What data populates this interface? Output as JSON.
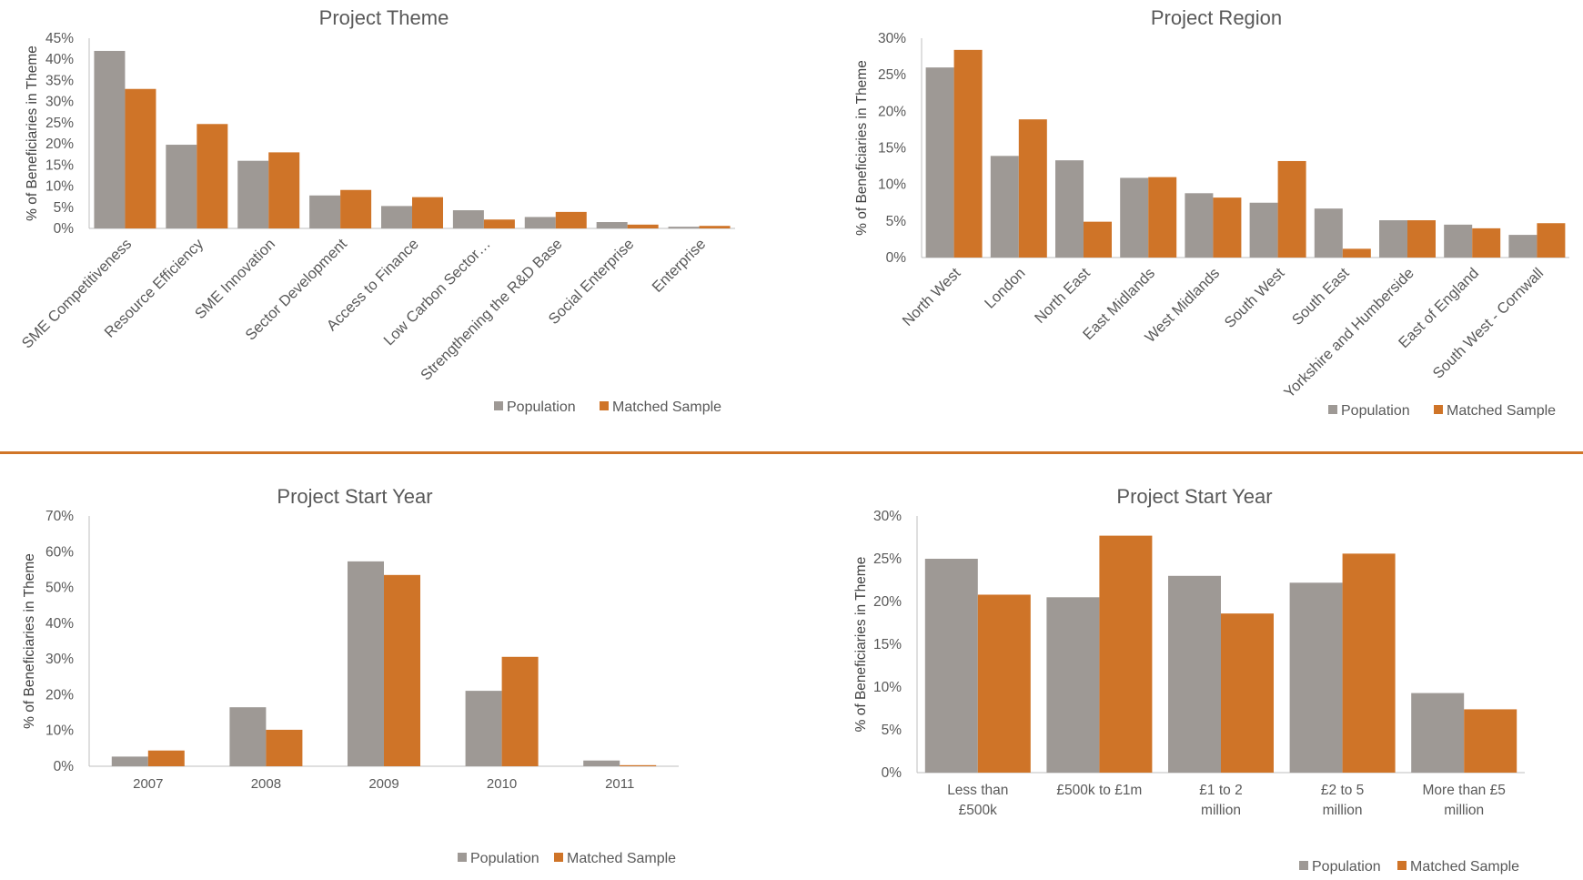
{
  "colors": {
    "population": "#9e9995",
    "matched": "#cf7428",
    "divider": "#d07527",
    "axis": "#bfbfbf",
    "text": "#595959"
  },
  "chart_data": [
    {
      "type": "bar",
      "title": "Project Theme",
      "ylabel": "% of Beneficiaries in Theme",
      "ylim": [
        0,
        45
      ],
      "yticks": [
        "0%",
        "5%",
        "10%",
        "15%",
        "20%",
        "25%",
        "30%",
        "35%",
        "40%",
        "45%"
      ],
      "categories": [
        "SME Competitiveness",
        "Resource Efficiency",
        "SME Innovation",
        "Sector Development",
        "Access to Finance",
        "Low Carbon Sector…",
        "Strengthening the R&D Base",
        "Social Enterprise",
        "Enterprise"
      ],
      "series": [
        {
          "name": "Population",
          "values": [
            42,
            19.8,
            16,
            7.8,
            5.3,
            4.3,
            2.7,
            1.5,
            0.4
          ]
        },
        {
          "name": "Matched Sample",
          "values": [
            33,
            24.7,
            18,
            9.1,
            7.4,
            2.1,
            3.9,
            0.9,
            0.6
          ]
        }
      ],
      "legend": "bottom-right",
      "grid": false
    },
    {
      "type": "bar",
      "title": "Project Region",
      "ylabel": "% of Beneficiaries in Theme",
      "ylim": [
        0,
        30
      ],
      "yticks": [
        "0%",
        "5%",
        "10%",
        "15%",
        "20%",
        "25%",
        "30%"
      ],
      "categories": [
        "North West",
        "London",
        "North East",
        "East Midlands",
        "West Midlands",
        "South West",
        "South East",
        "Yorkshire and Humberside",
        "East of England",
        "South West - Cornwall"
      ],
      "series": [
        {
          "name": "Population",
          "values": [
            26,
            13.9,
            13.3,
            10.9,
            8.8,
            7.5,
            6.7,
            5.1,
            4.5,
            3.1
          ]
        },
        {
          "name": "Matched Sample",
          "values": [
            28.4,
            18.9,
            4.9,
            11,
            8.2,
            13.2,
            1.2,
            5.1,
            4,
            4.7
          ]
        }
      ],
      "legend": "bottom-right",
      "grid": false
    },
    {
      "type": "bar",
      "title": "Project Start Year",
      "ylabel": "% of Beneficiaries in Theme",
      "ylim": [
        0,
        70
      ],
      "yticks": [
        "0%",
        "10%",
        "20%",
        "30%",
        "40%",
        "50%",
        "60%",
        "70%"
      ],
      "categories": [
        "2007",
        "2008",
        "2009",
        "2010",
        "2011"
      ],
      "series": [
        {
          "name": "Population",
          "values": [
            2.7,
            16.5,
            57.3,
            21.1,
            1.6
          ]
        },
        {
          "name": "Matched Sample",
          "values": [
            4.4,
            10.2,
            53.5,
            30.6,
            0.3
          ]
        }
      ],
      "legend": "bottom-center",
      "grid": false
    },
    {
      "type": "bar",
      "title": "Project Start Year",
      "ylabel": "% of Beneficiaries in Theme",
      "ylim": [
        0,
        30
      ],
      "yticks": [
        "0%",
        "5%",
        "10%",
        "15%",
        "20%",
        "25%",
        "30%"
      ],
      "categories": [
        "Less than £500k",
        "£500k to £1m",
        "£1 to 2 million",
        "£2 to 5 million",
        "More than £5 million"
      ],
      "series": [
        {
          "name": "Population",
          "values": [
            25,
            20.5,
            23,
            22.2,
            9.3
          ]
        },
        {
          "name": "Matched Sample",
          "values": [
            20.8,
            27.7,
            18.6,
            25.6,
            7.4
          ]
        }
      ],
      "legend": "bottom-right",
      "grid": false
    }
  ]
}
